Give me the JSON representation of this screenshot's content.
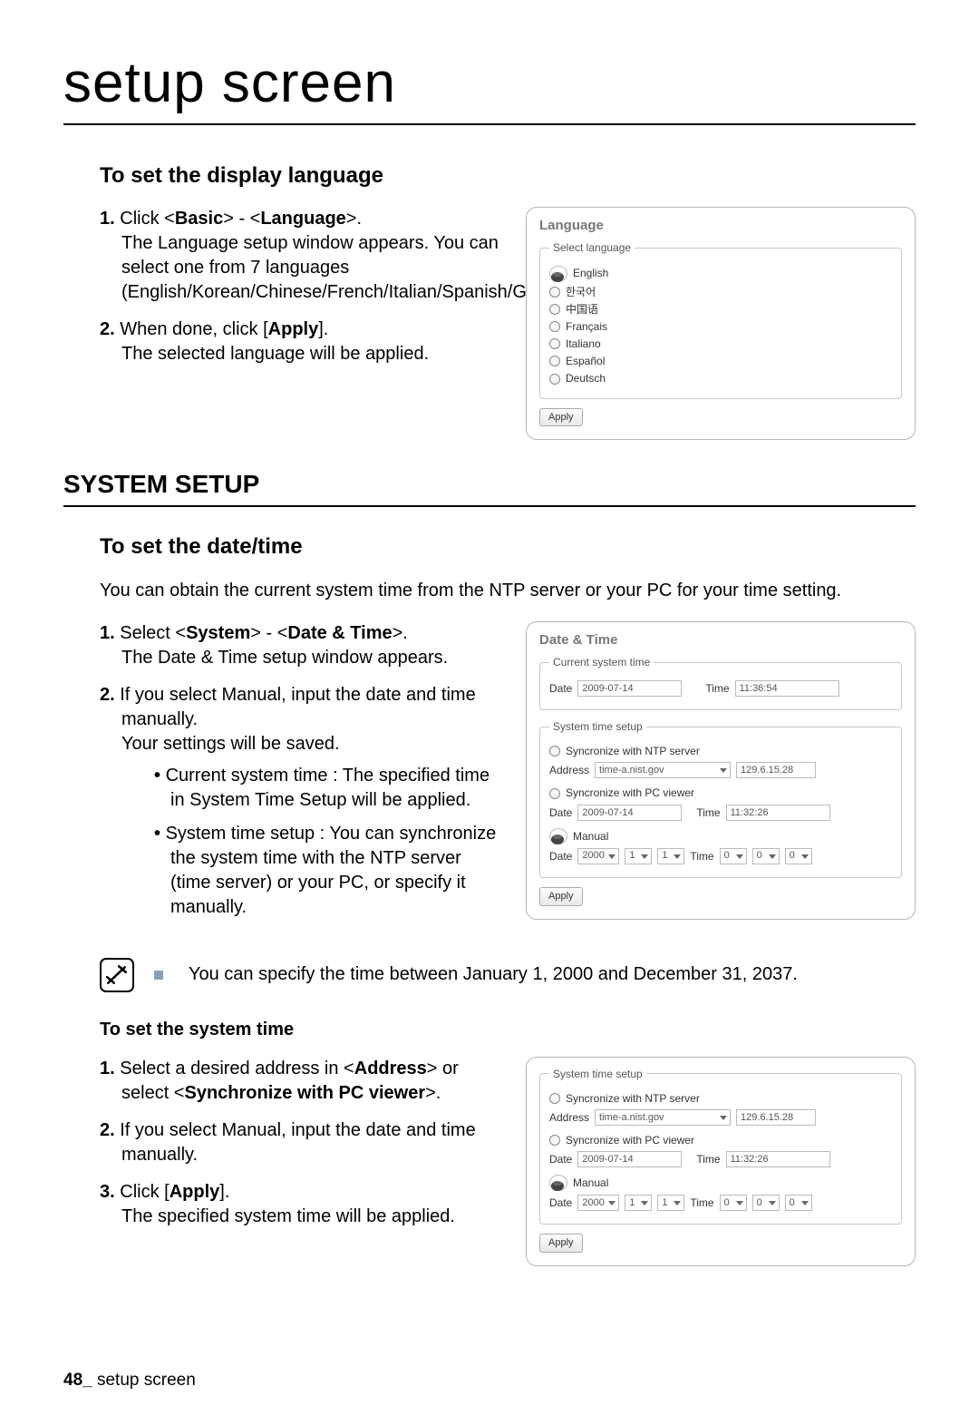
{
  "page": {
    "title": "setup screen",
    "footer_page": "48_",
    "footer_text": "setup screen"
  },
  "lang_section": {
    "heading": "To set the display language",
    "step1_prefix": "Click <",
    "step1_b1": "Basic",
    "step1_mid": "> - <",
    "step1_b2": "Language",
    "step1_suffix": ">.",
    "step1_rest": "The Language setup window appears. You can select one from 7 languages (English/Korean/Chinese/French/Italian/Spanish/German).",
    "step2_prefix": "When done, click [",
    "step2_b": "Apply",
    "step2_suffix": "].",
    "step2_rest": "The selected language will be applied."
  },
  "lang_panel": {
    "title": "Language",
    "legend": "Select language",
    "opts": [
      "English",
      "한국어",
      "中国语",
      "Français",
      "Italiano",
      "Español",
      "Deutsch"
    ],
    "selected_index": 0,
    "apply": "Apply"
  },
  "system_setup_heading": "SYSTEM SETUP",
  "datetime_section": {
    "heading": "To set the date/time",
    "intro": "You can obtain the current system time from the NTP server or your PC for your time setting.",
    "step1_prefix": "Select <",
    "step1_b1": "System",
    "step1_mid": "> - <",
    "step1_b2": "Date & Time",
    "step1_suffix": ">.",
    "step1_rest": "The Date & Time setup window appears.",
    "step2_text": "If you select Manual, input the date and time manually.",
    "step2_rest": "Your settings will be saved.",
    "bullet1": "Current system time : The specified time in System Time Setup will be applied.",
    "bullet2": "System time setup : You can synchronize the system time with the NTP server (time server) or your PC, or specify it manually."
  },
  "dt_panel": {
    "title": "Date & Time",
    "cur_legend": "Current system time",
    "cur_date_lbl": "Date",
    "cur_date_val": "2009-07-14",
    "cur_time_lbl": "Time",
    "cur_time_val": "11:36:54",
    "sts_legend": "System time setup",
    "ntp_label": "Syncronize with NTP server",
    "addr_lbl": "Address",
    "addr_val": "time-a.nist.gov",
    "addr_ip": "129.6.15.28",
    "pc_label": "Syncronize with PC viewer",
    "pc_date_lbl": "Date",
    "pc_date_val": "2009-07-14",
    "pc_time_lbl": "Time",
    "pc_time_val": "11:32:26",
    "manual_label": "Manual",
    "man_date_lbl": "Date",
    "man_y": "2000",
    "man_m": "1",
    "man_d": "1",
    "man_time_lbl": "Time",
    "man_h": "0",
    "man_mi": "0",
    "man_s": "0",
    "apply": "Apply"
  },
  "note": {
    "text": "You can specify the time between January 1, 2000 and December 31, 2037."
  },
  "systime_section": {
    "heading": "To set the system time",
    "step1_prefix": "Select a desired address in <",
    "step1_b1": "Address",
    "step1_mid": "> or select <",
    "step1_b2": "Synchronize with PC viewer",
    "step1_suffix": ">.",
    "step2": "If you select Manual, input the date and time manually.",
    "step3_prefix": "Click [",
    "step3_b": "Apply",
    "step3_suffix": "].",
    "step3_rest": "The specified system time will be applied."
  }
}
